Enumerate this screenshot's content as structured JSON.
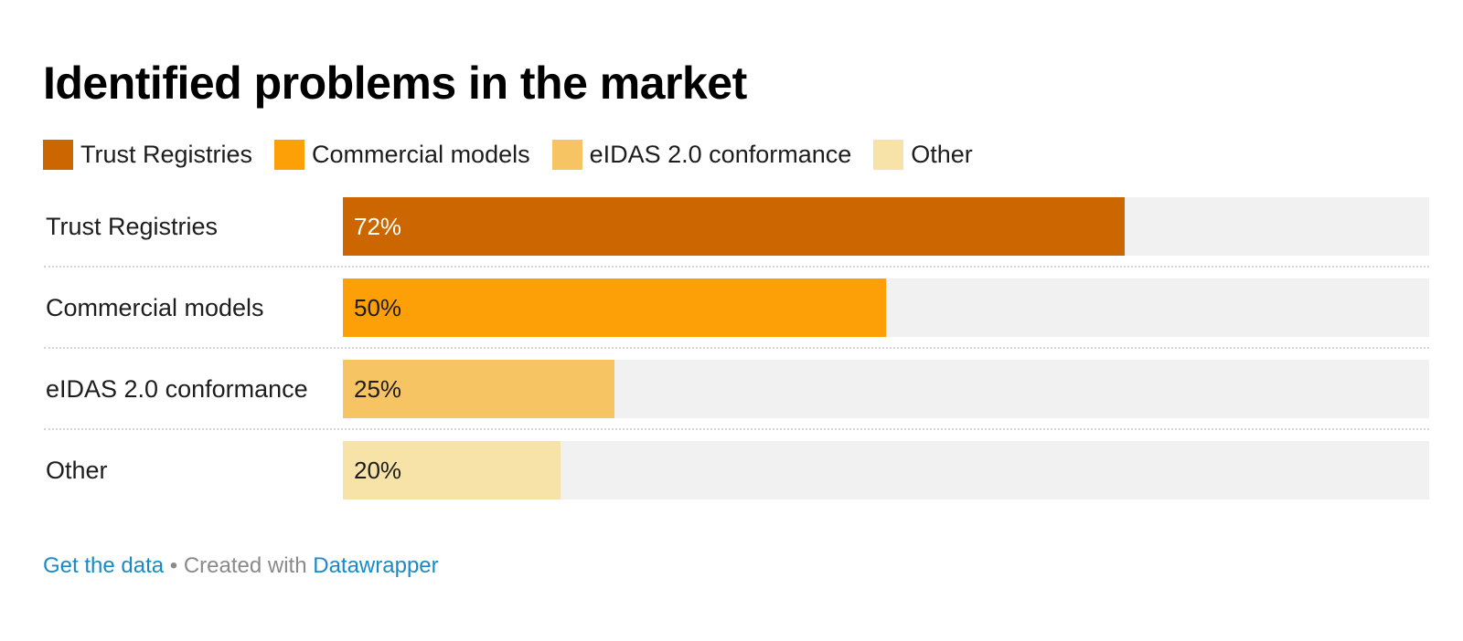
{
  "chart_data": {
    "type": "bar",
    "orientation": "horizontal",
    "title": "Identified problems in the market",
    "categories": [
      "Trust Registries",
      "Commercial models",
      "eIDAS 2.0 conformance",
      "Other"
    ],
    "values": [
      72,
      50,
      25,
      20
    ],
    "value_labels": [
      "72%",
      "50%",
      "25%",
      "20%"
    ],
    "colors": [
      "#cc6600",
      "#fd9f07",
      "#f6c462",
      "#f7e3a7"
    ],
    "value_label_colors": [
      "#ffffff",
      "#1d1d1d",
      "#1d1d1d",
      "#1d1d1d"
    ],
    "xlim": [
      0,
      100
    ],
    "legend": {
      "position": "top-left",
      "entries": [
        "Trust Registries",
        "Commercial models",
        "eIDAS 2.0 conformance",
        "Other"
      ]
    }
  },
  "footer": {
    "get_data": "Get the data",
    "separator": " • Created with ",
    "datawrapper": "Datawrapper"
  }
}
